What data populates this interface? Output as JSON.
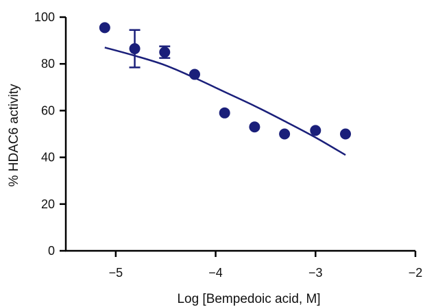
{
  "chart_data": {
    "type": "scatter",
    "title": "",
    "xlabel": "Log [Bempedoic acid, M]",
    "ylabel": "% HDAC6 activity",
    "xlim": [
      -5.5,
      -2
    ],
    "ylim": [
      0,
      100
    ],
    "grid": false,
    "legend": "none",
    "x_ticks": [
      -5,
      -4,
      -3,
      -2
    ],
    "y_ticks": [
      0,
      20,
      40,
      60,
      80,
      100
    ],
    "x_tick_labels": [
      "−5",
      "−4",
      "−3",
      "−2"
    ],
    "y_tick_labels": [
      "0",
      "20",
      "40",
      "60",
      "80",
      "100"
    ],
    "color": "#1a1f7a",
    "series": [
      {
        "kind": "points",
        "x": [
          -5.11,
          -4.81,
          -4.51,
          -4.21,
          -3.91,
          -3.61,
          -3.31,
          -3.0,
          -2.7
        ],
        "y": [
          95.5,
          86.5,
          85.0,
          75.5,
          59.0,
          53.0,
          50.0,
          51.5,
          50.0
        ],
        "error": [
          null,
          8.0,
          2.5,
          null,
          null,
          null,
          null,
          null,
          null
        ]
      },
      {
        "kind": "fit-curve",
        "x": [
          -5.11,
          -4.81,
          -4.51,
          -4.21,
          -3.91,
          -3.61,
          -3.31,
          -3.0,
          -2.7
        ],
        "y": [
          87.0,
          83.5,
          79.5,
          74.0,
          68.0,
          62.0,
          55.5,
          48.5,
          41.0
        ]
      }
    ]
  }
}
